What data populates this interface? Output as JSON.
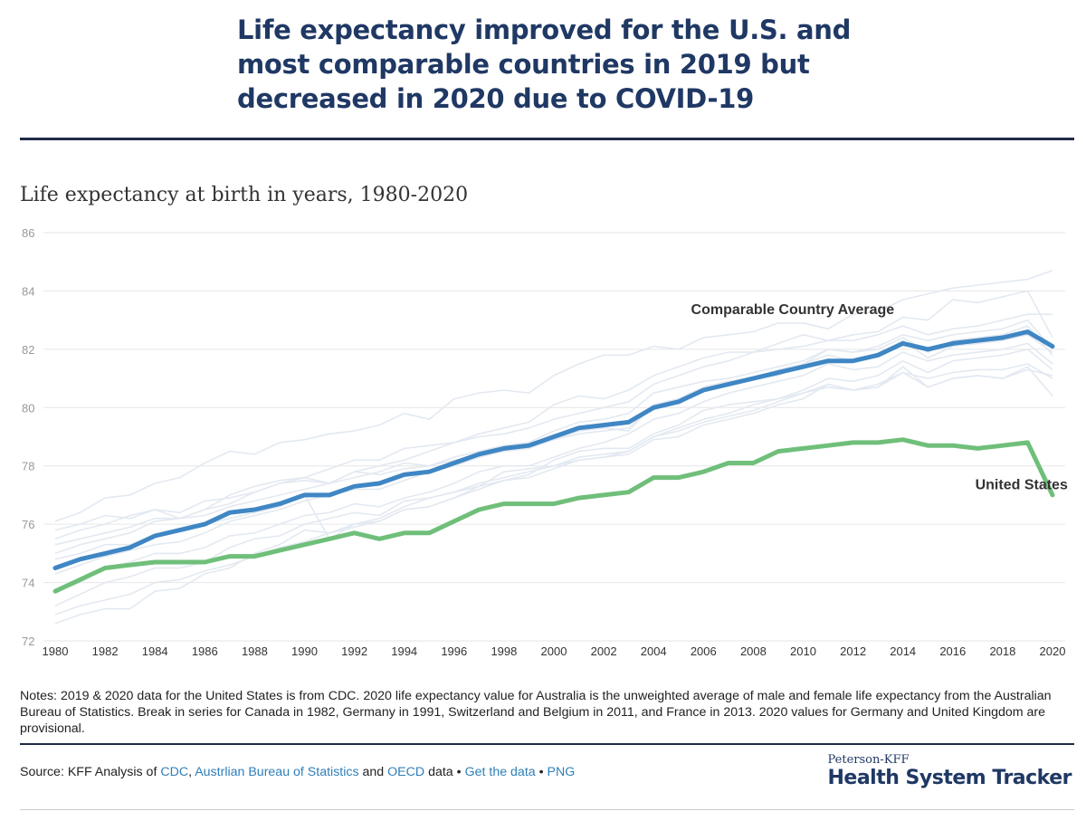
{
  "header": {
    "title": "Life expectancy improved for the U.S. and most comparable countries in 2019 but decreased in 2020 due to COVID-19"
  },
  "chart_data": {
    "type": "line",
    "subtitle": "Life expectancy at birth in years, 1980-2020",
    "xlabel": "",
    "ylabel": "",
    "xlim": [
      1980,
      2020
    ],
    "ylim": [
      72,
      86
    ],
    "y_ticks": [
      72,
      74,
      76,
      78,
      80,
      82,
      84,
      86
    ],
    "x_ticks": [
      1980,
      1982,
      1984,
      1986,
      1988,
      1990,
      1992,
      1994,
      1996,
      1998,
      2000,
      2002,
      2004,
      2006,
      2008,
      2010,
      2012,
      2014,
      2016,
      2018,
      2020
    ],
    "grid": true,
    "legend": "none",
    "x": [
      1980,
      1981,
      1982,
      1983,
      1984,
      1985,
      1986,
      1987,
      1988,
      1989,
      1990,
      1991,
      1992,
      1993,
      1994,
      1995,
      1996,
      1997,
      1998,
      1999,
      2000,
      2001,
      2002,
      2003,
      2004,
      2005,
      2006,
      2007,
      2008,
      2009,
      2010,
      2011,
      2012,
      2013,
      2014,
      2015,
      2016,
      2017,
      2018,
      2019,
      2020
    ],
    "series": [
      {
        "name": "Comparable Country Average",
        "color": "#3f86c4",
        "values": [
          74.5,
          74.8,
          75.0,
          75.2,
          75.6,
          75.8,
          76.0,
          76.4,
          76.5,
          76.7,
          77.0,
          77.0,
          77.3,
          77.4,
          77.7,
          77.8,
          78.1,
          78.4,
          78.6,
          78.7,
          79.0,
          79.3,
          79.4,
          79.5,
          80.0,
          80.2,
          80.6,
          80.8,
          81.0,
          81.2,
          81.4,
          81.6,
          81.6,
          81.8,
          82.2,
          82.0,
          82.2,
          82.3,
          82.4,
          82.6,
          82.1
        ]
      },
      {
        "name": "United States",
        "color": "#6fbf7a",
        "values": [
          73.7,
          74.1,
          74.5,
          74.6,
          74.7,
          74.7,
          74.7,
          74.9,
          74.9,
          75.1,
          75.3,
          75.5,
          75.7,
          75.5,
          75.7,
          75.7,
          76.1,
          76.5,
          76.7,
          76.7,
          76.7,
          76.9,
          77.0,
          77.1,
          77.6,
          77.6,
          77.8,
          78.1,
          78.1,
          78.5,
          78.6,
          78.7,
          78.8,
          78.8,
          78.9,
          78.7,
          78.7,
          78.6,
          78.7,
          78.8,
          77.0
        ]
      }
    ],
    "background_series_color": "#e3e9f1",
    "background_series": [
      [
        76.1,
        76.4,
        76.9,
        77.0,
        77.4,
        77.6,
        78.1,
        78.5,
        78.4,
        78.8,
        78.9,
        79.1,
        79.2,
        79.4,
        79.8,
        79.6,
        80.3,
        80.5,
        80.6,
        80.5,
        81.1,
        81.5,
        81.8,
        81.8,
        82.1,
        82.0,
        82.4,
        82.5,
        82.6,
        82.9,
        82.9,
        82.7,
        83.2,
        83.3,
        83.7,
        83.9,
        84.1,
        84.2,
        84.3,
        84.4,
        84.7
      ],
      [
        75.8,
        76.0,
        76.3,
        76.2,
        76.5,
        76.4,
        76.8,
        76.9,
        77.1,
        77.4,
        77.6,
        77.9,
        78.2,
        78.2,
        78.6,
        78.7,
        78.8,
        79.1,
        79.3,
        79.5,
        80.1,
        80.4,
        80.3,
        80.6,
        81.1,
        81.4,
        81.7,
        81.9,
        81.9,
        82.2,
        82.5,
        82.3,
        82.5,
        82.6,
        83.1,
        83.0,
        83.7,
        83.6,
        83.8,
        84.0,
        82.4
      ],
      [
        75.5,
        75.8,
        76.0,
        76.3,
        76.5,
        76.2,
        76.5,
        77.0,
        77.3,
        77.5,
        77.6,
        77.4,
        77.8,
        78.0,
        78.2,
        78.5,
        78.8,
        79.0,
        79.1,
        79.3,
        79.6,
        79.8,
        80.0,
        80.2,
        80.8,
        81.1,
        81.4,
        81.6,
        81.9,
        82.0,
        82.1,
        82.3,
        82.3,
        82.5,
        82.8,
        82.5,
        82.7,
        82.8,
        83.0,
        83.2,
        83.2
      ],
      [
        75.0,
        75.3,
        75.5,
        75.7,
        76.1,
        76.2,
        76.3,
        76.6,
        76.8,
        77.0,
        77.2,
        77.4,
        77.6,
        77.8,
        78.1,
        78.0,
        78.3,
        78.5,
        78.7,
        78.8,
        79.2,
        79.5,
        79.6,
        79.8,
        80.5,
        80.7,
        80.9,
        81.0,
        81.2,
        81.4,
        81.6,
        82.0,
        81.9,
        82.1,
        82.5,
        82.3,
        82.5,
        82.6,
        82.7,
        83.0,
        82.0
      ],
      [
        74.3,
        74.6,
        74.9,
        75.1,
        75.3,
        75.4,
        75.7,
        76.1,
        76.3,
        76.5,
        76.8,
        77.0,
        77.2,
        77.2,
        77.5,
        77.8,
        78.0,
        78.3,
        78.5,
        78.6,
        78.9,
        79.1,
        79.2,
        79.3,
        80.1,
        80.3,
        80.7,
        80.9,
        81.0,
        81.3,
        81.5,
        82.0,
        81.9,
        82.0,
        82.4,
        81.9,
        82.3,
        82.4,
        82.5,
        82.8,
        81.8
      ],
      [
        73.7,
        74.0,
        74.5,
        74.7,
        75.0,
        75.0,
        75.2,
        75.6,
        75.7,
        76.0,
        76.3,
        76.4,
        76.7,
        76.6,
        76.9,
        77.1,
        77.4,
        77.8,
        78.0,
        78.0,
        78.3,
        78.6,
        78.8,
        79.1,
        79.6,
        79.8,
        80.2,
        80.5,
        80.7,
        80.9,
        81.1,
        81.5,
        81.3,
        81.4,
        81.9,
        81.6,
        81.8,
        81.9,
        82.0,
        82.2,
        81.5
      ],
      [
        73.2,
        73.6,
        74.0,
        74.2,
        74.5,
        74.5,
        74.7,
        75.2,
        75.5,
        75.6,
        76.0,
        76.2,
        76.4,
        76.3,
        76.8,
        76.9,
        77.1,
        77.4,
        77.6,
        77.8,
        78.0,
        78.3,
        78.4,
        78.5,
        79.0,
        79.3,
        79.6,
        79.8,
        80.1,
        80.3,
        80.6,
        81.0,
        80.9,
        81.1,
        81.6,
        81.2,
        81.6,
        81.7,
        81.8,
        82.0,
        81.3
      ],
      [
        72.9,
        73.2,
        73.4,
        73.6,
        74.0,
        74.1,
        74.4,
        74.6,
        74.9,
        75.2,
        75.4,
        75.7,
        75.9,
        76.1,
        76.5,
        76.6,
        76.9,
        77.2,
        77.5,
        77.6,
        77.9,
        78.2,
        78.3,
        78.5,
        79.0,
        79.2,
        79.5,
        79.7,
        79.9,
        80.2,
        80.5,
        80.8,
        80.6,
        80.8,
        81.2,
        81.0,
        81.2,
        81.3,
        81.3,
        81.5,
        81.0
      ],
      [
        72.6,
        72.9,
        73.1,
        73.1,
        73.7,
        73.8,
        74.3,
        74.5,
        75.0,
        75.3,
        75.8,
        75.7,
        76.0,
        76.2,
        76.6,
        76.9,
        77.1,
        77.3,
        77.8,
        77.9,
        78.0,
        78.2,
        78.3,
        78.4,
        78.9,
        79.0,
        79.4,
        79.6,
        79.8,
        80.1,
        80.3,
        80.8,
        80.6,
        80.7,
        81.4,
        80.7,
        81.0,
        81.1,
        81.0,
        81.4,
        80.4
      ],
      [
        74.8,
        75.0,
        75.3,
        75.3,
        75.6,
        75.8,
        76.0,
        76.2,
        76.4,
        76.6,
        77.0,
        75.5,
        76.0,
        76.1,
        76.5,
        76.6,
        76.9,
        77.3,
        77.5,
        77.7,
        78.2,
        78.5,
        78.6,
        78.6,
        79.1,
        79.4,
        79.9,
        80.1,
        80.2,
        80.3,
        80.5,
        80.7,
        80.6,
        80.7,
        81.2,
        80.7,
        81.0,
        81.1,
        81.0,
        81.3,
        81.1
      ],
      [
        75.3,
        75.5,
        75.7,
        75.9,
        76.2,
        76.2,
        76.5,
        76.7,
        77.1,
        77.4,
        77.5,
        77.4,
        77.8,
        77.7,
        77.9,
        78.0,
        78.2,
        78.3,
        78.6,
        78.8,
        78.9,
        79.2,
        79.3,
        79.2,
        80.1,
        80.3,
        80.7,
        80.9,
        81.0,
        81.1,
        81.5,
        81.8,
        81.6,
        81.8,
        82.3,
        81.7,
        82.1,
        82.2,
        82.3,
        82.5,
        81.9
      ]
    ],
    "annotations": [
      {
        "text": "Comparable Country Average",
        "x": 2005.5,
        "y": 83.2
      },
      {
        "text": "United States",
        "x": 2016.9,
        "y": 77.2
      }
    ]
  },
  "notes": "Notes: 2019 & 2020 data for the United States is from CDC. 2020 life expectancy value for Australia is the unweighted average of male and female life expectancy from the Australian Bureau of Statistics. Break in series for Canada in 1982, Germany in 1991, Switzerland and Belgium in 2011, and France in 2013. 2020 values for Germany and United Kingdom are provisional.",
  "source": {
    "prefix": "Source: KFF Analysis of ",
    "link_cdc": "CDC",
    "sep1": ", ",
    "link_abs": "Austrlian Bureau of Statistics",
    "and": " and ",
    "link_oecd": "OECD",
    "data_word": " data",
    "dot1": " • ",
    "link_get_data": "Get the data",
    "dot2": " • ",
    "link_png": "PNG"
  },
  "brand": {
    "small": "Peterson-KFF",
    "big": "Health System Tracker"
  }
}
